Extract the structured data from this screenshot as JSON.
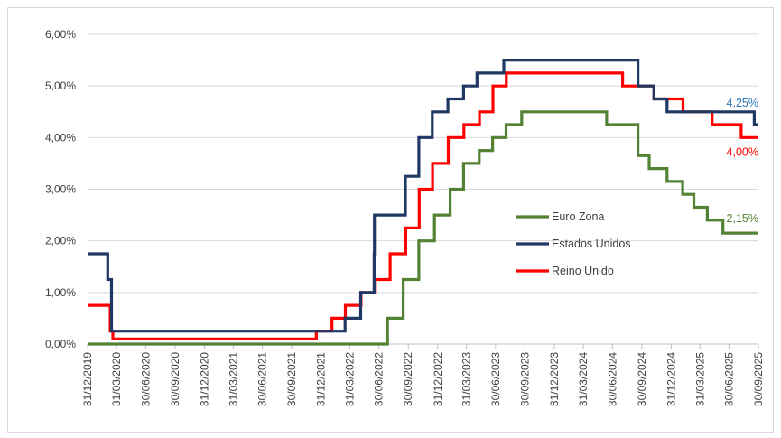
{
  "chart_data": {
    "type": "line",
    "title": "",
    "xlabel": "",
    "ylabel": "",
    "x_range": [
      "2019-12-31",
      "2025-09-30"
    ],
    "ylim": [
      0,
      6
    ],
    "y_ticks": [
      "0,00%",
      "1,00%",
      "2,00%",
      "3,00%",
      "4,00%",
      "5,00%",
      "6,00%"
    ],
    "x_ticks": [
      "31/12/2019",
      "31/03/2020",
      "30/06/2020",
      "30/09/2020",
      "31/12/2020",
      "31/03/2021",
      "30/06/2021",
      "30/09/2021",
      "31/12/2021",
      "31/03/2022",
      "30/06/2022",
      "30/09/2022",
      "31/12/2022",
      "31/03/2023",
      "30/06/2023",
      "30/09/2023",
      "31/12/2023",
      "31/03/2024",
      "30/06/2024",
      "30/09/2024",
      "31/12/2024",
      "31/03/2025",
      "30/06/2025",
      "30/09/2025"
    ],
    "grid": {
      "horizontal": true,
      "vertical": false
    },
    "legend_position": "right-middle",
    "series": [
      {
        "name": "Euro Zona",
        "color": "#548235",
        "end_label": "2,15%",
        "steps": [
          [
            "2019-12-31",
            0
          ],
          [
            "2022-07-27",
            0.5
          ],
          [
            "2022-09-14",
            1.25
          ],
          [
            "2022-11-02",
            2.0
          ],
          [
            "2022-12-21",
            2.5
          ],
          [
            "2023-02-08",
            3.0
          ],
          [
            "2023-03-22",
            3.5
          ],
          [
            "2023-05-10",
            3.75
          ],
          [
            "2023-06-21",
            4.0
          ],
          [
            "2023-08-02",
            4.25
          ],
          [
            "2023-09-20",
            4.5
          ],
          [
            "2024-06-12",
            4.25
          ],
          [
            "2024-09-18",
            3.65
          ],
          [
            "2024-10-23",
            3.4
          ],
          [
            "2024-12-18",
            3.15
          ],
          [
            "2025-02-05",
            2.9
          ],
          [
            "2025-03-12",
            2.65
          ],
          [
            "2025-04-23",
            2.4
          ],
          [
            "2025-06-11",
            2.15
          ],
          [
            "2025-09-30",
            2.15
          ]
        ]
      },
      {
        "name": "Estados Unidos",
        "color": "#203864",
        "end_label": "4,25%",
        "end_label_color": "#2E75B6",
        "steps": [
          [
            "2019-12-31",
            1.75
          ],
          [
            "2020-03-03",
            1.25
          ],
          [
            "2020-03-15",
            0.25
          ],
          [
            "2022-03-16",
            0.5
          ],
          [
            "2022-05-04",
            1.0
          ],
          [
            "2022-06-15",
            1.75
          ],
          [
            "2022-06-16",
            2.5
          ],
          [
            "2022-07-27",
            2.5
          ],
          [
            "2022-09-21",
            3.25
          ],
          [
            "2022-11-02",
            4.0
          ],
          [
            "2022-12-14",
            4.5
          ],
          [
            "2023-02-01",
            4.75
          ],
          [
            "2023-03-22",
            5.0
          ],
          [
            "2023-05-03",
            5.25
          ],
          [
            "2023-07-26",
            5.5
          ],
          [
            "2024-09-18",
            5.0
          ],
          [
            "2024-11-07",
            4.75
          ],
          [
            "2024-12-18",
            4.5
          ],
          [
            "2025-09-17",
            4.25
          ],
          [
            "2025-09-30",
            4.25
          ]
        ]
      },
      {
        "name": "Reino Unido",
        "color": "#FF0000",
        "end_label": "4,00%",
        "steps": [
          [
            "2019-12-31",
            0.75
          ],
          [
            "2020-03-11",
            0.25
          ],
          [
            "2020-03-19",
            0.1
          ],
          [
            "2021-12-16",
            0.25
          ],
          [
            "2022-02-03",
            0.5
          ],
          [
            "2022-03-17",
            0.75
          ],
          [
            "2022-05-05",
            1.0
          ],
          [
            "2022-06-16",
            1.25
          ],
          [
            "2022-08-04",
            1.75
          ],
          [
            "2022-09-22",
            2.25
          ],
          [
            "2022-11-03",
            3.0
          ],
          [
            "2022-12-15",
            3.5
          ],
          [
            "2023-02-02",
            4.0
          ],
          [
            "2023-03-23",
            4.25
          ],
          [
            "2023-05-11",
            4.5
          ],
          [
            "2023-06-22",
            5.0
          ],
          [
            "2023-08-03",
            5.25
          ],
          [
            "2024-08-01",
            5.0
          ],
          [
            "2024-11-07",
            4.75
          ],
          [
            "2025-02-06",
            4.5
          ],
          [
            "2025-05-08",
            4.25
          ],
          [
            "2025-08-07",
            4.0
          ],
          [
            "2025-09-30",
            4.0
          ]
        ]
      }
    ]
  }
}
